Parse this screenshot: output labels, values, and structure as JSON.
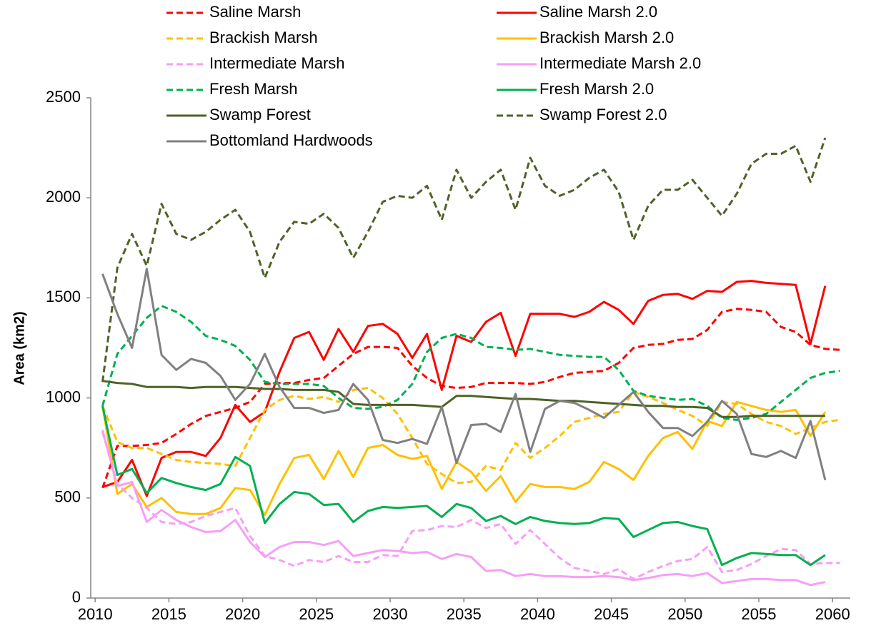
{
  "chart_data": {
    "type": "line",
    "y_label": "Area (km2)",
    "xlim": [
      2009.7,
      2061.2
    ],
    "xticks": [
      2010,
      2015,
      2020,
      2025,
      2030,
      2035,
      2040,
      2045,
      2050,
      2055,
      2060
    ],
    "ylim": [
      0,
      2500
    ],
    "yticks": [
      0,
      500,
      1000,
      1500,
      2000,
      2500
    ],
    "grid": false,
    "legend": "top",
    "x": [
      2010.5,
      2011.5,
      2012.5,
      2013.5,
      2014.5,
      2015.5,
      2016.5,
      2017.5,
      2018.5,
      2019.5,
      2020.5,
      2021.5,
      2022.5,
      2023.5,
      2024.5,
      2025.5,
      2026.5,
      2027.5,
      2028.5,
      2029.5,
      2030.5,
      2031.5,
      2032.5,
      2033.5,
      2034.5,
      2035.5,
      2036.5,
      2037.5,
      2038.5,
      2039.5,
      2040.5,
      2041.5,
      2042.5,
      2043.5,
      2044.5,
      2045.5,
      2046.5,
      2047.5,
      2048.5,
      2049.5,
      2050.5,
      2051.5,
      2052.5,
      2053.5,
      2054.5,
      2055.5,
      2056.5,
      2057.5,
      2058.5,
      2059.5,
      2060.5
    ],
    "series": [
      {
        "name": "Saline Marsh",
        "color": "#ff0000",
        "dash": true,
        "values": [
          550,
          760,
          760,
          765,
          775,
          820,
          870,
          910,
          930,
          950,
          980,
          1070,
          1075,
          1075,
          1090,
          1100,
          1160,
          1220,
          1255,
          1255,
          1250,
          1160,
          1100,
          1060,
          1050,
          1055,
          1075,
          1075,
          1075,
          1070,
          1080,
          1105,
          1125,
          1130,
          1135,
          1175,
          1250,
          1265,
          1270,
          1290,
          1295,
          1340,
          1430,
          1445,
          1440,
          1430,
          1355,
          1330,
          1265,
          1245,
          1240
        ]
      },
      {
        "name": "Saline Marsh 2.0",
        "color": "#ff0000",
        "dash": false,
        "values": [
          555,
          580,
          690,
          510,
          700,
          730,
          730,
          710,
          800,
          965,
          880,
          930,
          1130,
          1300,
          1330,
          1190,
          1345,
          1230,
          1360,
          1370,
          1320,
          1200,
          1320,
          1040,
          1310,
          1280,
          1380,
          1425,
          1210,
          1420,
          1420,
          1420,
          1405,
          1430,
          1480,
          1440,
          1370,
          1485,
          1515,
          1520,
          1495,
          1535,
          1530,
          1580,
          1585,
          1575,
          1570,
          1565,
          1270,
          1560,
          null
        ]
      },
      {
        "name": "Brackish Marsh",
        "color": "#ffc000",
        "dash": true,
        "values": [
          960,
          780,
          750,
          750,
          720,
          690,
          680,
          675,
          670,
          660,
          800,
          940,
          990,
          1010,
          995,
          1005,
          980,
          1040,
          1050,
          1000,
          920,
          800,
          670,
          620,
          575,
          580,
          660,
          640,
          775,
          700,
          750,
          810,
          880,
          900,
          920,
          930,
          1030,
          1005,
          975,
          940,
          910,
          860,
          980,
          970,
          920,
          880,
          860,
          820,
          850,
          880,
          890
        ]
      },
      {
        "name": "Brackish Marsh 2.0",
        "color": "#ffc000",
        "dash": false,
        "values": [
          960,
          520,
          570,
          455,
          500,
          430,
          420,
          420,
          450,
          550,
          540,
          415,
          570,
          700,
          715,
          595,
          735,
          605,
          750,
          765,
          715,
          695,
          710,
          545,
          680,
          630,
          535,
          610,
          480,
          570,
          555,
          555,
          545,
          580,
          680,
          645,
          590,
          710,
          800,
          830,
          745,
          885,
          860,
          980,
          960,
          940,
          930,
          940,
          810,
          930,
          null
        ]
      },
      {
        "name": "Intermediate Marsh",
        "color": "#f79ef7",
        "dash": true,
        "values": [
          830,
          570,
          500,
          450,
          380,
          370,
          380,
          410,
          430,
          450,
          310,
          210,
          190,
          160,
          190,
          180,
          210,
          180,
          180,
          215,
          210,
          335,
          340,
          360,
          355,
          390,
          350,
          370,
          270,
          340,
          270,
          200,
          150,
          135,
          120,
          145,
          95,
          130,
          160,
          185,
          195,
          255,
          130,
          140,
          170,
          210,
          245,
          240,
          170,
          175,
          175
        ]
      },
      {
        "name": "Intermediate Marsh 2.0",
        "color": "#f79ef7",
        "dash": false,
        "values": [
          840,
          560,
          580,
          380,
          440,
          390,
          355,
          330,
          335,
          390,
          280,
          205,
          255,
          280,
          280,
          265,
          285,
          210,
          225,
          240,
          235,
          225,
          230,
          195,
          220,
          205,
          135,
          140,
          110,
          120,
          110,
          110,
          105,
          105,
          110,
          105,
          90,
          100,
          115,
          120,
          110,
          125,
          75,
          85,
          95,
          95,
          90,
          90,
          65,
          80,
          null
        ]
      },
      {
        "name": "Fresh Marsh",
        "color": "#00b050",
        "dash": true,
        "values": [
          960,
          1220,
          1310,
          1400,
          1460,
          1430,
          1380,
          1310,
          1290,
          1260,
          1190,
          1080,
          1070,
          1070,
          1070,
          1060,
          1000,
          950,
          945,
          955,
          990,
          1070,
          1230,
          1300,
          1320,
          1300,
          1255,
          1250,
          1240,
          1245,
          1230,
          1215,
          1210,
          1205,
          1205,
          1140,
          1035,
          1010,
          1000,
          990,
          995,
          960,
          900,
          890,
          900,
          920,
          980,
          1040,
          1100,
          1125,
          1135
        ]
      },
      {
        "name": "Fresh Marsh 2.0",
        "color": "#00b050",
        "dash": false,
        "values": [
          960,
          615,
          645,
          525,
          600,
          575,
          555,
          540,
          570,
          705,
          660,
          375,
          470,
          530,
          520,
          465,
          470,
          380,
          435,
          455,
          450,
          455,
          460,
          405,
          470,
          450,
          385,
          410,
          370,
          405,
          385,
          375,
          370,
          375,
          400,
          395,
          305,
          340,
          375,
          380,
          360,
          345,
          165,
          200,
          225,
          220,
          215,
          215,
          165,
          215,
          null
        ]
      },
      {
        "name": "Swamp Forest",
        "color": "#4f6228",
        "dash": false,
        "values": [
          1085,
          1075,
          1070,
          1055,
          1055,
          1055,
          1050,
          1055,
          1055,
          1055,
          1050,
          1045,
          1045,
          1040,
          1040,
          1040,
          1030,
          970,
          965,
          965,
          965,
          965,
          960,
          955,
          1010,
          1010,
          1005,
          1000,
          995,
          995,
          990,
          985,
          985,
          980,
          975,
          970,
          965,
          960,
          960,
          955,
          955,
          950,
          905,
          905,
          910,
          910,
          910,
          910,
          910,
          910,
          null
        ]
      },
      {
        "name": "Swamp Forest 2.0",
        "color": "#4f6228",
        "dash": true,
        "values": [
          1080,
          1650,
          1820,
          1660,
          1970,
          1820,
          1790,
          1830,
          1890,
          1940,
          1830,
          1600,
          1780,
          1880,
          1870,
          1920,
          1850,
          1700,
          1830,
          1980,
          2010,
          2000,
          2060,
          1890,
          2140,
          2000,
          2080,
          2140,
          1940,
          2200,
          2060,
          2010,
          2040,
          2100,
          2140,
          2030,
          1790,
          1960,
          2040,
          2040,
          2090,
          2000,
          1910,
          2020,
          2170,
          2220,
          2220,
          2260,
          2080,
          2300,
          null
        ]
      },
      {
        "name": "Bottomland Hardwoods",
        "color": "#808080",
        "dash": false,
        "values": [
          1620,
          1420,
          1250,
          1645,
          1215,
          1140,
          1195,
          1175,
          1110,
          990,
          1070,
          1220,
          1055,
          950,
          950,
          925,
          940,
          1070,
          990,
          790,
          775,
          795,
          770,
          955,
          675,
          865,
          870,
          830,
          1020,
          730,
          945,
          985,
          975,
          940,
          900,
          965,
          1030,
          930,
          850,
          850,
          810,
          880,
          985,
          920,
          720,
          705,
          735,
          700,
          885,
          590,
          null
        ]
      }
    ]
  }
}
